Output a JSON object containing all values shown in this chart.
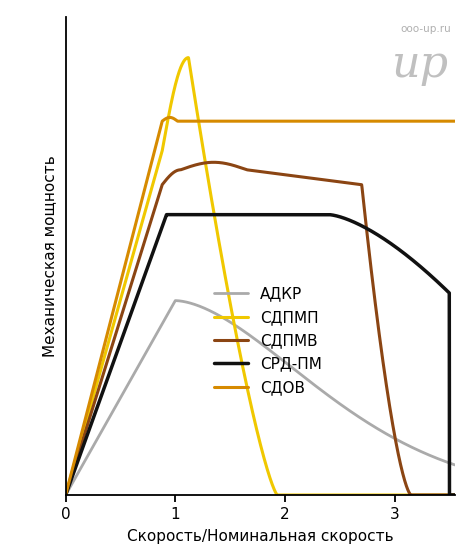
{
  "xlabel": "Скорость/Номинальная скорость",
  "ylabel": "Механическая мощность",
  "xlim": [
    0,
    3.55
  ],
  "ylim": [
    0,
    1.28
  ],
  "xticks": [
    0,
    1,
    2,
    3
  ],
  "watermark_line1": "ooo-up.ru",
  "watermark_line2": "ир",
  "legend_labels": [
    "АДКР",
    "СДПМП",
    "СДПМВ",
    "СРД-ПМ",
    "СДОВ"
  ],
  "colors": {
    "АДКР": "#aaaaaa",
    "СДПМП": "#f0c800",
    "СДПМВ": "#8b4513",
    "СРД-ПМ": "#111111",
    "СДОВ": "#d68a00"
  },
  "linewidths": {
    "АДКР": 2.0,
    "СДПМП": 2.2,
    "СДПМВ": 2.2,
    "СРД-ПМ": 2.5,
    "СДОВ": 2.2
  },
  "background_color": "#ffffff"
}
